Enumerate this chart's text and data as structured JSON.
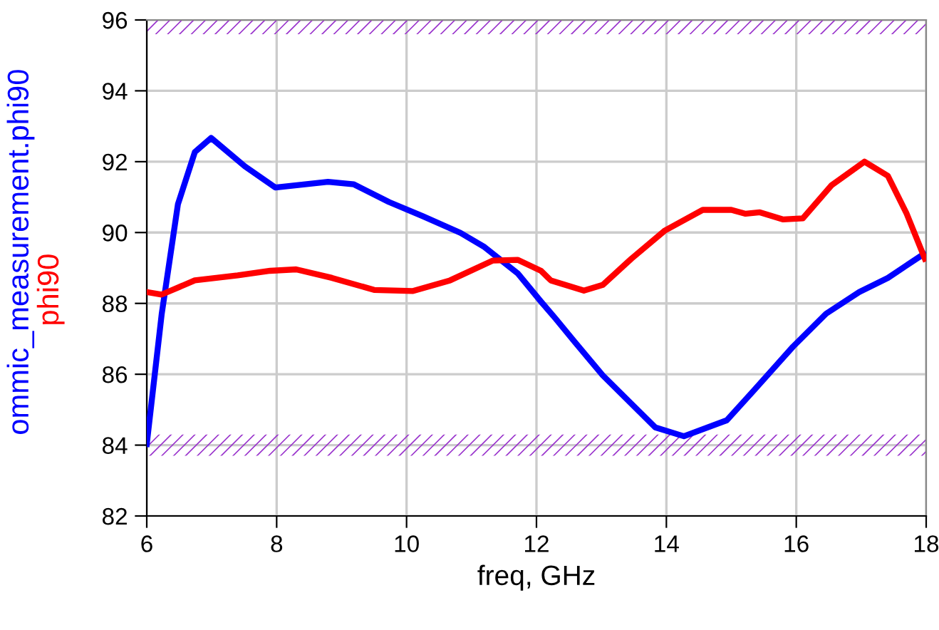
{
  "chart_data": {
    "type": "line",
    "xlabel": "freq, GHz",
    "xlim": [
      6,
      18
    ],
    "xticks": [
      6,
      8,
      10,
      12,
      14,
      16,
      18
    ],
    "ylim": [
      82,
      96
    ],
    "yticks": [
      82,
      84,
      86,
      88,
      90,
      92,
      94,
      96
    ],
    "grid": true,
    "legend": false,
    "line_style": "solid",
    "series": [
      {
        "name": "ommic_measurement.phi90",
        "color": "#0000ff",
        "x": [
          6.0,
          6.23,
          6.48,
          6.74,
          6.99,
          7.51,
          7.98,
          8.79,
          9.19,
          9.73,
          10.25,
          10.83,
          11.2,
          11.71,
          12.07,
          12.29,
          12.59,
          13.02,
          13.46,
          13.83,
          14.27,
          14.93,
          15.36,
          15.95,
          16.46,
          16.97,
          17.41,
          17.96
        ],
        "values": [
          84.03,
          87.7,
          90.8,
          92.27,
          92.67,
          91.87,
          91.27,
          91.43,
          91.36,
          90.86,
          90.46,
          89.99,
          89.59,
          88.85,
          88.05,
          87.58,
          86.91,
          85.97,
          85.17,
          84.5,
          84.25,
          84.7,
          85.57,
          86.78,
          87.71,
          88.32,
          88.72,
          89.39
        ]
      },
      {
        "name": "phi90",
        "color": "#ff0000",
        "x": [
          6.0,
          6.23,
          6.74,
          7.4,
          7.9,
          8.3,
          8.85,
          9.5,
          10.1,
          10.67,
          11.33,
          11.71,
          12.07,
          12.22,
          12.73,
          13.02,
          13.46,
          13.98,
          14.56,
          15.0,
          15.22,
          15.44,
          15.8,
          16.1,
          16.54,
          17.05,
          17.41,
          17.7,
          17.98
        ],
        "values": [
          88.32,
          88.25,
          88.65,
          88.79,
          88.92,
          88.96,
          88.72,
          88.38,
          88.35,
          88.65,
          89.21,
          89.23,
          88.92,
          88.65,
          88.36,
          88.52,
          89.26,
          90.06,
          90.64,
          90.64,
          90.53,
          90.57,
          90.37,
          90.4,
          91.33,
          92.0,
          91.6,
          90.53,
          89.26
        ]
      }
    ],
    "bands": [
      {
        "axis": "y",
        "from": 95.6,
        "to": 96,
        "color": "#9933cc"
      },
      {
        "axis": "y",
        "from": 83.7,
        "to": 84.3,
        "color": "#9933cc"
      }
    ]
  }
}
